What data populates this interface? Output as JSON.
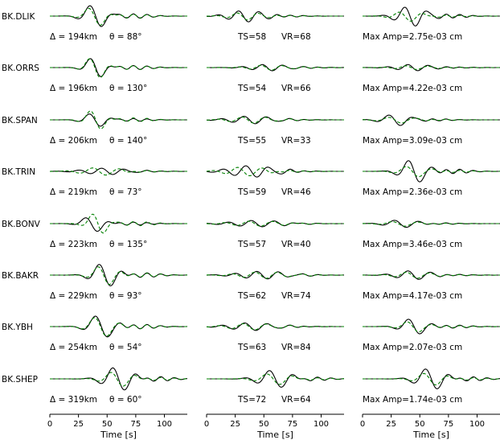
{
  "chart_data": {
    "type": "line",
    "description_free": true,
    "colors": {
      "observed": "#000000",
      "synthetic": "#008000"
    },
    "columns": [
      {
        "id": "col1",
        "xlim": [
          0,
          120
        ],
        "ticks": [
          0,
          25,
          50,
          75,
          100
        ],
        "xlabel": "Time [s]"
      },
      {
        "id": "col2",
        "xlim": [
          0,
          120
        ],
        "ticks": [
          0,
          25,
          50,
          75,
          100
        ],
        "xlabel": "Time [s]"
      },
      {
        "id": "col3",
        "xlim": [
          0,
          120
        ],
        "ticks": [
          0,
          25,
          50,
          75,
          100
        ],
        "xlabel": "Time [s]"
      }
    ],
    "stations": [
      {
        "name": "BK.DLIK",
        "dist_text": "Δ = 194km",
        "theta_text": "θ = 88°",
        "ts_text": "TS=58",
        "vr_text": "VR=68",
        "amp_text": "Max Amp=2.75e-03 cm",
        "traces": [
          {
            "obs": {
              "amp": 0.95,
              "center": 40,
              "period": 23,
              "width": 13,
              "phase": 0.0
            },
            "syn": {
              "amp": 0.8,
              "center": 40,
              "period": 24,
              "width": 12,
              "phase": 0.3
            }
          },
          {
            "obs": {
              "amp": 0.45,
              "center": 35,
              "period": 18,
              "width": 20,
              "phase": 1.0
            },
            "syn": {
              "amp": 0.3,
              "center": 35,
              "period": 19,
              "width": 18,
              "phase": 1.3
            }
          },
          {
            "obs": {
              "amp": 0.8,
              "center": 43,
              "period": 20,
              "width": 16,
              "phase": 0.5
            },
            "syn": {
              "amp": 0.4,
              "center": 40,
              "period": 22,
              "width": 16,
              "phase": 0.9
            }
          }
        ]
      },
      {
        "name": "BK.ORRS",
        "dist_text": "Δ = 196km",
        "theta_text": "θ = 130°",
        "ts_text": "TS=54",
        "vr_text": "VR=66",
        "amp_text": "Max Amp=4.22e-03 cm",
        "traces": [
          {
            "obs": {
              "amp": 0.85,
              "center": 40,
              "period": 22,
              "width": 11,
              "phase": 0.0
            },
            "syn": {
              "amp": 0.9,
              "center": 40,
              "period": 22,
              "width": 11,
              "phase": 0.2
            }
          },
          {
            "obs": {
              "amp": 0.25,
              "center": 55,
              "period": 18,
              "width": 22,
              "phase": 0.7
            },
            "syn": {
              "amp": 0.2,
              "center": 55,
              "period": 19,
              "width": 22,
              "phase": 1.0
            }
          },
          {
            "obs": {
              "amp": 0.25,
              "center": 45,
              "period": 18,
              "width": 20,
              "phase": 0.4
            },
            "syn": {
              "amp": 0.15,
              "center": 45,
              "period": 20,
              "width": 20,
              "phase": 0.8
            }
          }
        ]
      },
      {
        "name": "BK.SPAN",
        "dist_text": "Δ = 206km",
        "theta_text": "θ = 140°",
        "ts_text": "TS=55",
        "vr_text": "VR=33",
        "amp_text": "Max Amp=3.09e-03 cm",
        "traces": [
          {
            "obs": {
              "amp": 0.55,
              "center": 40,
              "period": 22,
              "width": 13,
              "phase": 0.2
            },
            "syn": {
              "amp": 0.85,
              "center": 40,
              "period": 22,
              "width": 11,
              "phase": 0.0
            }
          },
          {
            "obs": {
              "amp": 0.3,
              "center": 40,
              "period": 20,
              "width": 25,
              "phase": 0.8
            },
            "syn": {
              "amp": 0.25,
              "center": 40,
              "period": 21,
              "width": 24,
              "phase": 1.2
            }
          },
          {
            "obs": {
              "amp": 0.45,
              "center": 30,
              "period": 22,
              "width": 16,
              "phase": 0.6
            },
            "syn": {
              "amp": 0.25,
              "center": 32,
              "period": 24,
              "width": 18,
              "phase": 1.0
            }
          }
        ]
      },
      {
        "name": "BK.TRIN",
        "dist_text": "Δ = 219km",
        "theta_text": "θ = 73°",
        "ts_text": "TS=59",
        "vr_text": "VR=46",
        "amp_text": "Max Amp=2.36e-03 cm",
        "traces": [
          {
            "obs": {
              "amp": 0.25,
              "center": 50,
              "period": 20,
              "width": 25,
              "phase": 0.0
            },
            "syn": {
              "amp": 0.3,
              "center": 45,
              "period": 24,
              "width": 22,
              "phase": 0.5
            }
          },
          {
            "obs": {
              "amp": 0.45,
              "center": 40,
              "period": 20,
              "width": 26,
              "phase": 0.3
            },
            "syn": {
              "amp": 0.35,
              "center": 35,
              "period": 22,
              "width": 22,
              "phase": 0.8
            }
          },
          {
            "obs": {
              "amp": 0.95,
              "center": 45,
              "period": 22,
              "width": 14,
              "phase": 0.0
            },
            "syn": {
              "amp": 0.45,
              "center": 45,
              "period": 24,
              "width": 16,
              "phase": 0.4
            }
          }
        ]
      },
      {
        "name": "BK.BONV",
        "dist_text": "Δ = 223km",
        "theta_text": "θ = 135°",
        "ts_text": "TS=57",
        "vr_text": "VR=40",
        "amp_text": "Max Amp=3.46e-03 cm",
        "traces": [
          {
            "obs": {
              "amp": 0.65,
              "center": 38,
              "period": 24,
              "width": 12,
              "phase": 0.5
            },
            "syn": {
              "amp": 0.9,
              "center": 42,
              "period": 22,
              "width": 11,
              "phase": 0.0
            }
          },
          {
            "obs": {
              "amp": 0.25,
              "center": 45,
              "period": 20,
              "width": 30,
              "phase": 0.4
            },
            "syn": {
              "amp": 0.2,
              "center": 45,
              "period": 21,
              "width": 30,
              "phase": 0.9
            }
          },
          {
            "obs": {
              "amp": 0.3,
              "center": 35,
              "period": 22,
              "width": 18,
              "phase": 0.6
            },
            "syn": {
              "amp": 0.2,
              "center": 35,
              "period": 24,
              "width": 18,
              "phase": 1.0
            }
          }
        ]
      },
      {
        "name": "BK.BAKR",
        "dist_text": "Δ = 229km",
        "theta_text": "θ = 93°",
        "ts_text": "TS=62",
        "vr_text": "VR=74",
        "amp_text": "Max Amp=4.17e-03 cm",
        "traces": [
          {
            "obs": {
              "amp": 0.95,
              "center": 48,
              "period": 22,
              "width": 14,
              "phase": 0.0
            },
            "syn": {
              "amp": 0.8,
              "center": 48,
              "period": 22,
              "width": 13,
              "phase": 0.3
            }
          },
          {
            "obs": {
              "amp": 0.3,
              "center": 50,
              "period": 19,
              "width": 28,
              "phase": 0.5
            },
            "syn": {
              "amp": 0.25,
              "center": 50,
              "period": 20,
              "width": 28,
              "phase": 0.9
            }
          },
          {
            "obs": {
              "amp": 0.35,
              "center": 45,
              "period": 20,
              "width": 20,
              "phase": 0.2
            },
            "syn": {
              "amp": 0.25,
              "center": 45,
              "period": 21,
              "width": 20,
              "phase": 0.6
            }
          }
        ]
      },
      {
        "name": "BK.YBH",
        "dist_text": "Δ = 254km",
        "theta_text": "θ = 54°",
        "ts_text": "TS=63",
        "vr_text": "VR=84",
        "amp_text": "Max Amp=2.07e-03 cm",
        "traces": [
          {
            "obs": {
              "amp": 0.95,
              "center": 45,
              "period": 24,
              "width": 14,
              "phase": 0.0
            },
            "syn": {
              "amp": 0.85,
              "center": 45,
              "period": 24,
              "width": 14,
              "phase": 0.2
            }
          },
          {
            "obs": {
              "amp": 0.3,
              "center": 40,
              "period": 20,
              "width": 26,
              "phase": 0.6
            },
            "syn": {
              "amp": 0.25,
              "center": 40,
              "period": 21,
              "width": 26,
              "phase": 0.9
            }
          },
          {
            "obs": {
              "amp": 0.65,
              "center": 45,
              "period": 22,
              "width": 14,
              "phase": 0.0
            },
            "syn": {
              "amp": 0.45,
              "center": 45,
              "period": 23,
              "width": 14,
              "phase": 0.3
            }
          }
        ]
      },
      {
        "name": "BK.SHEP",
        "dist_text": "Δ = 319km",
        "theta_text": "θ = 60°",
        "ts_text": "TS=72",
        "vr_text": "VR=64",
        "amp_text": "Max Amp=1.74e-03 cm",
        "traces": [
          {
            "obs": {
              "amp": 0.95,
              "center": 60,
              "period": 22,
              "width": 16,
              "phase": 0.0
            },
            "syn": {
              "amp": 0.6,
              "center": 60,
              "period": 23,
              "width": 16,
              "phase": 0.4
            }
          },
          {
            "obs": {
              "amp": 0.7,
              "center": 60,
              "period": 22,
              "width": 18,
              "phase": 0.0
            },
            "syn": {
              "amp": 0.45,
              "center": 60,
              "period": 24,
              "width": 18,
              "phase": 0.5
            }
          },
          {
            "obs": {
              "amp": 0.85,
              "center": 60,
              "period": 22,
              "width": 16,
              "phase": 0.0
            },
            "syn": {
              "amp": 0.5,
              "center": 60,
              "period": 23,
              "width": 16,
              "phase": 0.4
            }
          }
        ]
      }
    ]
  }
}
